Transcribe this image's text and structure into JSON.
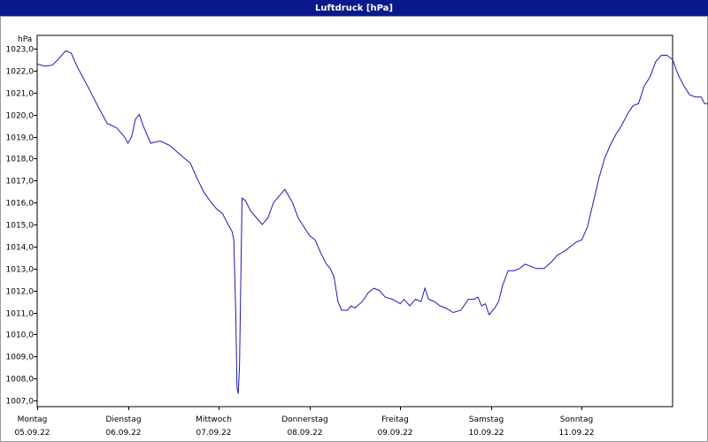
{
  "window": {
    "title": "Luftdruck [hPa]"
  },
  "chart_data": {
    "type": "line",
    "title": "Luftdruck [hPa]",
    "ylabel": "hPa",
    "xlabel": "",
    "ylim": [
      1007.0,
      1023.0
    ],
    "y_ticks": [
      1007.0,
      1008.0,
      1009.0,
      1010.0,
      1011.0,
      1012.0,
      1013.0,
      1014.0,
      1015.0,
      1016.0,
      1017.0,
      1018.0,
      1019.0,
      1020.0,
      1021.0,
      1022.0,
      1023.0
    ],
    "y_tick_labels": [
      "1007,0",
      "1008,0",
      "1009,0",
      "1010,0",
      "1011,0",
      "1012,0",
      "1013,0",
      "1014,0",
      "1015,0",
      "1016,0",
      "1017,0",
      "1018,0",
      "1019,0",
      "1020,0",
      "1021,0",
      "1022,0",
      "1023,0"
    ],
    "x_range": [
      "05.09.22 00:00",
      "12.09.22 00:00"
    ],
    "days": [
      {
        "weekday": "Montag",
        "date": "05.09.22"
      },
      {
        "weekday": "Dienstag",
        "date": "06.09.22"
      },
      {
        "weekday": "Mittwoch",
        "date": "07.09.22"
      },
      {
        "weekday": "Donnerstag",
        "date": "08.09.22"
      },
      {
        "weekday": "Freitag",
        "date": "09.09.22"
      },
      {
        "weekday": "Samstag",
        "date": "10.09.22"
      },
      {
        "weekday": "Sonntag",
        "date": "11.09.22"
      }
    ],
    "grid": true,
    "series": [
      {
        "color": "#1a1ab0",
        "points": [
          [
            "05.09.22 00:00",
            1022.3
          ],
          [
            "05.09.22 02:00",
            1022.2
          ],
          [
            "05.09.22 04:00",
            1022.25
          ],
          [
            "05.09.22 05:30",
            1022.5
          ],
          [
            "05.09.22 07:30",
            1022.9
          ],
          [
            "05.09.22 09:00",
            1022.8
          ],
          [
            "05.09.22 10:30",
            1022.2
          ],
          [
            "05.09.22 13:00",
            1021.4
          ],
          [
            "05.09.22 16:00",
            1020.4
          ],
          [
            "05.09.22 18:30",
            1019.6
          ],
          [
            "05.09.22 21:00",
            1019.4
          ],
          [
            "05.09.22 23:00",
            1019.0
          ],
          [
            "06.09.22 00:00",
            1018.7
          ],
          [
            "06.09.22 01:00",
            1019.0
          ],
          [
            "06.09.22 02:00",
            1019.8
          ],
          [
            "06.09.22 03:00",
            1020.0
          ],
          [
            "06.09.22 04:00",
            1019.5
          ],
          [
            "06.09.22 06:00",
            1018.7
          ],
          [
            "06.09.22 08:30",
            1018.8
          ],
          [
            "06.09.22 11:00",
            1018.6
          ],
          [
            "06.09.22 13:00",
            1018.3
          ],
          [
            "06.09.22 15:00",
            1018.0
          ],
          [
            "06.09.22 16:30",
            1017.8
          ],
          [
            "06.09.22 18:00",
            1017.2
          ],
          [
            "06.09.22 20:00",
            1016.5
          ],
          [
            "06.09.22 22:00",
            1016.0
          ],
          [
            "06.09.22 23:30",
            1015.7
          ],
          [
            "07.09.22 01:00",
            1015.5
          ],
          [
            "07.09.22 02:30",
            1015.0
          ],
          [
            "07.09.22 03:30",
            1014.7
          ],
          [
            "07.09.22 04:00",
            1014.3
          ],
          [
            "07.09.22 04:30",
            1011.0
          ],
          [
            "07.09.22 04:50",
            1007.6
          ],
          [
            "07.09.22 05:10",
            1007.3
          ],
          [
            "07.09.22 05:30",
            1008.5
          ],
          [
            "07.09.22 05:50",
            1012.5
          ],
          [
            "07.09.22 06:10",
            1016.2
          ],
          [
            "07.09.22 07:00",
            1016.1
          ],
          [
            "07.09.22 08:30",
            1015.6
          ],
          [
            "07.09.22 10:00",
            1015.3
          ],
          [
            "07.09.22 11:30",
            1015.0
          ],
          [
            "07.09.22 13:00",
            1015.3
          ],
          [
            "07.09.22 14:30",
            1016.0
          ],
          [
            "07.09.22 17:30",
            1016.6
          ],
          [
            "07.09.22 19:30",
            1016.0
          ],
          [
            "07.09.22 21:00",
            1015.3
          ],
          [
            "07.09.22 22:30",
            1014.9
          ],
          [
            "08.09.22 00:00",
            1014.5
          ],
          [
            "08.09.22 01:30",
            1014.3
          ],
          [
            "08.09.22 03:00",
            1013.7
          ],
          [
            "08.09.22 04:30",
            1013.2
          ],
          [
            "08.09.22 05:30",
            1013.0
          ],
          [
            "08.09.22 06:30",
            1012.6
          ],
          [
            "08.09.22 07:30",
            1011.5
          ],
          [
            "08.09.22 08:30",
            1011.1
          ],
          [
            "08.09.22 10:00",
            1011.1
          ],
          [
            "08.09.22 11:00",
            1011.3
          ],
          [
            "08.09.22 12:00",
            1011.2
          ],
          [
            "08.09.22 14:00",
            1011.5
          ],
          [
            "08.09.22 15:30",
            1011.9
          ],
          [
            "08.09.22 17:00",
            1012.1
          ],
          [
            "08.09.22 18:30",
            1012.0
          ],
          [
            "08.09.22 20:00",
            1011.7
          ],
          [
            "08.09.22 22:00",
            1011.6
          ],
          [
            "09.09.22 00:00",
            1011.4
          ],
          [
            "09.09.22 01:00",
            1011.6
          ],
          [
            "09.09.22 02:30",
            1011.3
          ],
          [
            "09.09.22 04:00",
            1011.6
          ],
          [
            "09.09.22 05:30",
            1011.5
          ],
          [
            "09.09.22 06:30",
            1012.1
          ],
          [
            "09.09.22 07:30",
            1011.6
          ],
          [
            "09.09.22 09:00",
            1011.5
          ],
          [
            "09.09.22 10:30",
            1011.3
          ],
          [
            "09.09.22 12:00",
            1011.2
          ],
          [
            "09.09.22 14:00",
            1011.0
          ],
          [
            "09.09.22 16:00",
            1011.1
          ],
          [
            "09.09.22 18:00",
            1011.6
          ],
          [
            "09.09.22 19:30",
            1011.6
          ],
          [
            "09.09.22 20:30",
            1011.7
          ],
          [
            "09.09.22 21:30",
            1011.3
          ],
          [
            "09.09.22 22:30",
            1011.4
          ],
          [
            "09.09.22 23:30",
            1010.9
          ],
          [
            "10.09.22 01:00",
            1011.2
          ],
          [
            "10.09.22 02:00",
            1011.5
          ],
          [
            "10.09.22 03:00",
            1012.2
          ],
          [
            "10.09.22 04:30",
            1012.9
          ],
          [
            "10.09.22 06:00",
            1012.9
          ],
          [
            "10.09.22 07:30",
            1013.0
          ],
          [
            "10.09.22 09:00",
            1013.2
          ],
          [
            "10.09.22 10:30",
            1013.1
          ],
          [
            "10.09.22 12:00",
            1013.0
          ],
          [
            "10.09.22 14:00",
            1013.0
          ],
          [
            "10.09.22 16:00",
            1013.3
          ],
          [
            "10.09.22 17:30",
            1013.6
          ],
          [
            "10.09.22 19:30",
            1013.8
          ],
          [
            "10.09.22 21:00",
            1014.0
          ],
          [
            "10.09.22 22:30",
            1014.2
          ],
          [
            "11.09.22 00:00",
            1014.3
          ],
          [
            "11.09.22 01:30",
            1014.9
          ],
          [
            "11.09.22 03:00",
            1016.0
          ],
          [
            "11.09.22 04:30",
            1017.1
          ],
          [
            "11.09.22 06:00",
            1018.0
          ],
          [
            "11.09.22 07:30",
            1018.6
          ],
          [
            "11.09.22 09:00",
            1019.1
          ],
          [
            "11.09.22 10:30",
            1019.5
          ],
          [
            "11.09.22 12:00",
            1020.0
          ],
          [
            "11.09.22 13:30",
            1020.4
          ],
          [
            "11.09.22 15:00",
            1020.5
          ],
          [
            "11.09.22 16:30",
            1021.3
          ],
          [
            "11.09.22 18:00",
            1021.7
          ],
          [
            "11.09.22 19:30",
            1022.4
          ],
          [
            "11.09.22 21:00",
            1022.7
          ],
          [
            "11.09.22 22:30",
            1022.7
          ],
          [
            "12.09.22 00:00",
            1022.5
          ],
          [
            "12.09.22 01:30",
            1021.8
          ],
          [
            "12.09.22 03:00",
            1021.3
          ],
          [
            "12.09.22 04:30",
            1020.9
          ],
          [
            "12.09.22 06:00",
            1020.8
          ],
          [
            "12.09.22 07:30",
            1020.8
          ],
          [
            "12.09.22 08:30",
            1020.5
          ],
          [
            "12.09.22 10:00",
            1020.5
          ]
        ]
      }
    ]
  }
}
